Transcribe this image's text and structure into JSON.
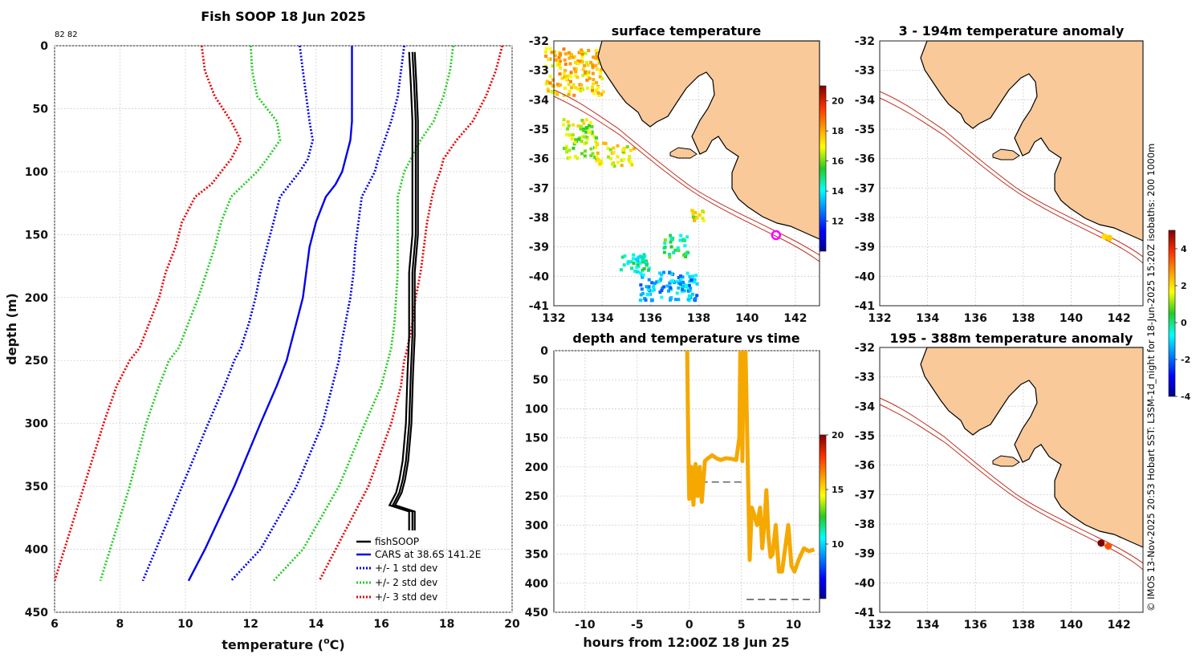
{
  "chart_data": [
    {
      "id": "profile",
      "type": "line",
      "title": "Fish SOOP 18 Jun 2025",
      "corner_note": "82 82",
      "xlabel": "temperature (",
      "xlabel_sup": "o",
      "xlabel_end": "C)",
      "ylabel": "depth (m)",
      "xlim": [
        6,
        20
      ],
      "ylim": [
        450,
        0
      ],
      "xticks": [
        6,
        8,
        10,
        12,
        14,
        16,
        18,
        20
      ],
      "yticks": [
        0,
        50,
        100,
        150,
        200,
        250,
        300,
        350,
        400,
        450
      ],
      "grid": true,
      "legend_position": "bottom-right",
      "legend": [
        "fishSOOP",
        "CARS at 38.6S 141.2E",
        "+/- 1 std dev",
        "+/- 2 std dev",
        "+/- 3 std dev"
      ],
      "depth": [
        0,
        20,
        40,
        60,
        75,
        90,
        100,
        110,
        120,
        140,
        160,
        180,
        200,
        220,
        240,
        250,
        270,
        300,
        350,
        400,
        425
      ],
      "series": [
        {
          "name": "CARS mean",
          "color": "#0000ee",
          "style": "solid",
          "values": [
            15.1,
            15.1,
            15.1,
            15.1,
            15.05,
            14.9,
            14.8,
            14.6,
            14.3,
            14.0,
            13.8,
            13.7,
            13.6,
            13.4,
            13.2,
            13.1,
            12.8,
            12.3,
            11.5,
            10.6,
            10.1
          ]
        },
        {
          "name": "+1 std",
          "color": "#0000ee",
          "style": "dotted",
          "values": [
            16.7,
            16.6,
            16.5,
            16.3,
            16.1,
            15.9,
            15.8,
            15.6,
            15.4,
            15.3,
            15.2,
            15.15,
            15.05,
            14.9,
            14.75,
            14.7,
            14.5,
            14.2,
            13.4,
            12.3,
            11.4
          ]
        },
        {
          "name": "-1 std",
          "color": "#0000ee",
          "style": "dotted",
          "values": [
            13.5,
            13.6,
            13.7,
            13.8,
            13.9,
            13.75,
            13.5,
            13.2,
            12.9,
            12.7,
            12.5,
            12.3,
            12.15,
            11.95,
            11.7,
            11.5,
            11.2,
            10.7,
            9.9,
            9.1,
            8.7
          ]
        },
        {
          "name": "+2 std",
          "color": "#22cc22",
          "style": "dotted",
          "values": [
            18.2,
            18.1,
            17.9,
            17.6,
            17.2,
            16.9,
            16.7,
            16.6,
            16.5,
            16.5,
            16.5,
            16.5,
            16.45,
            16.4,
            16.3,
            16.2,
            16.0,
            15.5,
            14.7,
            13.6,
            12.7
          ]
        },
        {
          "name": "-2 std",
          "color": "#22cc22",
          "style": "dotted",
          "values": [
            12.0,
            12.05,
            12.2,
            12.8,
            12.9,
            12.5,
            12.2,
            11.8,
            11.4,
            11.1,
            10.9,
            10.65,
            10.4,
            10.1,
            9.8,
            9.5,
            9.2,
            8.8,
            8.3,
            7.7,
            7.4
          ]
        },
        {
          "name": "+3 std",
          "color": "#ee0000",
          "style": "dotted",
          "values": [
            19.7,
            19.5,
            19.2,
            18.8,
            18.3,
            17.9,
            17.8,
            17.65,
            17.55,
            17.4,
            17.3,
            17.2,
            17.05,
            16.95,
            16.8,
            16.7,
            16.6,
            16.3,
            15.6,
            14.6,
            14.1
          ]
        },
        {
          "name": "-3 std",
          "color": "#ee0000",
          "style": "dotted",
          "values": [
            10.5,
            10.6,
            10.9,
            11.4,
            11.7,
            11.4,
            11.1,
            10.8,
            10.3,
            9.9,
            9.7,
            9.4,
            9.2,
            8.9,
            8.6,
            8.3,
            7.9,
            7.5,
            6.9,
            6.3,
            6.0
          ]
        }
      ],
      "fishsoop": {
        "name": "fishSOOP",
        "color": "#000000",
        "depth": [
          5,
          30,
          60,
          90,
          120,
          150,
          180,
          200,
          230,
          260,
          300,
          330,
          345,
          355,
          365,
          370,
          375,
          385
        ],
        "values": [
          16.9,
          16.95,
          17.0,
          17.0,
          17.0,
          17.0,
          16.9,
          16.9,
          16.9,
          16.85,
          16.8,
          16.7,
          16.6,
          16.5,
          16.3,
          16.9,
          16.9,
          16.9
        ]
      }
    },
    {
      "id": "sst_map",
      "type": "heatmap",
      "title": "surface temperature",
      "xlim": [
        132,
        143
      ],
      "ylim": [
        -41,
        -32
      ],
      "xticks": [
        132,
        134,
        136,
        138,
        140,
        142
      ],
      "yticks": [
        -32,
        -33,
        -34,
        -35,
        -36,
        -37,
        -38,
        -39,
        -40,
        -41
      ],
      "colorbar": {
        "min": 10,
        "max": 21,
        "ticks": [
          12,
          14,
          16,
          18,
          20
        ]
      },
      "marker": {
        "lon": 141.2,
        "lat": -38.6
      }
    },
    {
      "id": "time_series",
      "type": "scatter",
      "title": "depth and temperature vs time",
      "xlabel": "hours from 12:00Z 18 Jun 25",
      "xlim": [
        -13,
        12.5
      ],
      "ylim": [
        450,
        0
      ],
      "xticks": [
        -10,
        -5,
        0,
        5,
        10
      ],
      "yticks": [
        0,
        50,
        100,
        150,
        200,
        250,
        300,
        350,
        400,
        450
      ],
      "colorbar": {
        "min": 5,
        "max": 20,
        "ticks": [
          10,
          15,
          20
        ]
      },
      "color": "#f5a800",
      "dashed_bottom": [
        {
          "x": [
            0,
            5
          ],
          "depth": 226
        },
        {
          "x": [
            5.5,
            12
          ],
          "depth": 428
        }
      ],
      "hours": [
        -0.2,
        -0.1,
        0.0,
        0.2,
        0.4,
        0.6,
        0.8,
        1.0,
        1.2,
        1.5,
        1.8,
        2.2,
        2.6,
        3.0,
        3.5,
        4.0,
        4.5,
        4.8,
        4.9,
        5.0,
        5.1,
        5.2,
        5.4,
        5.6,
        5.8,
        6.0,
        6.2,
        6.5,
        6.8,
        7.0,
        7.2,
        7.4,
        7.6,
        7.8,
        8.0,
        8.3,
        8.6,
        8.9,
        9.2,
        9.5,
        9.8,
        10.1,
        10.5,
        11.0,
        11.5,
        12.0
      ],
      "depth": [
        0,
        150,
        255,
        200,
        265,
        195,
        250,
        200,
        260,
        190,
        185,
        180,
        185,
        188,
        185,
        186,
        188,
        150,
        0,
        0,
        190,
        0,
        0,
        180,
        360,
        270,
        280,
        300,
        270,
        340,
        300,
        240,
        320,
        355,
        350,
        300,
        380,
        380,
        340,
        300,
        370,
        380,
        360,
        340,
        345,
        342
      ]
    },
    {
      "id": "anom_shallow",
      "type": "scatter",
      "title": "3 - 194m temperature anomaly",
      "xlim": [
        132,
        143
      ],
      "ylim": [
        -41,
        -32
      ],
      "xticks": [
        132,
        134,
        136,
        138,
        140,
        142
      ],
      "yticks": [
        -32,
        -33,
        -34,
        -35,
        -36,
        -37,
        -38,
        -39,
        -40,
        -41
      ],
      "points": [
        {
          "lon": 141.4,
          "lat": -38.65,
          "anomaly": 2.0
        },
        {
          "lon": 141.6,
          "lat": -38.7,
          "anomaly": 2.2
        }
      ]
    },
    {
      "id": "anom_deep",
      "type": "scatter",
      "title": "195 - 388m temperature anomaly",
      "xlim": [
        132,
        143
      ],
      "ylim": [
        -41,
        -32
      ],
      "xticks": [
        132,
        134,
        136,
        138,
        140,
        142
      ],
      "yticks": [
        -32,
        -33,
        -34,
        -35,
        -36,
        -37,
        -38,
        -39,
        -40,
        -41
      ],
      "points": [
        {
          "lon": 141.25,
          "lat": -38.65,
          "anomaly": 5.0
        },
        {
          "lon": 141.55,
          "lat": -38.75,
          "anomaly": 3.5
        }
      ],
      "colorbar": {
        "min": -4,
        "max": 5,
        "ticks": [
          -4,
          -2,
          0,
          2,
          4
        ]
      }
    }
  ],
  "credit": "© IMOS 13-Nov-2025 20:53 Hobart SST: L3SM-1d_night for 18-Jun-2025 15:20Z isobaths: 200  1000m"
}
